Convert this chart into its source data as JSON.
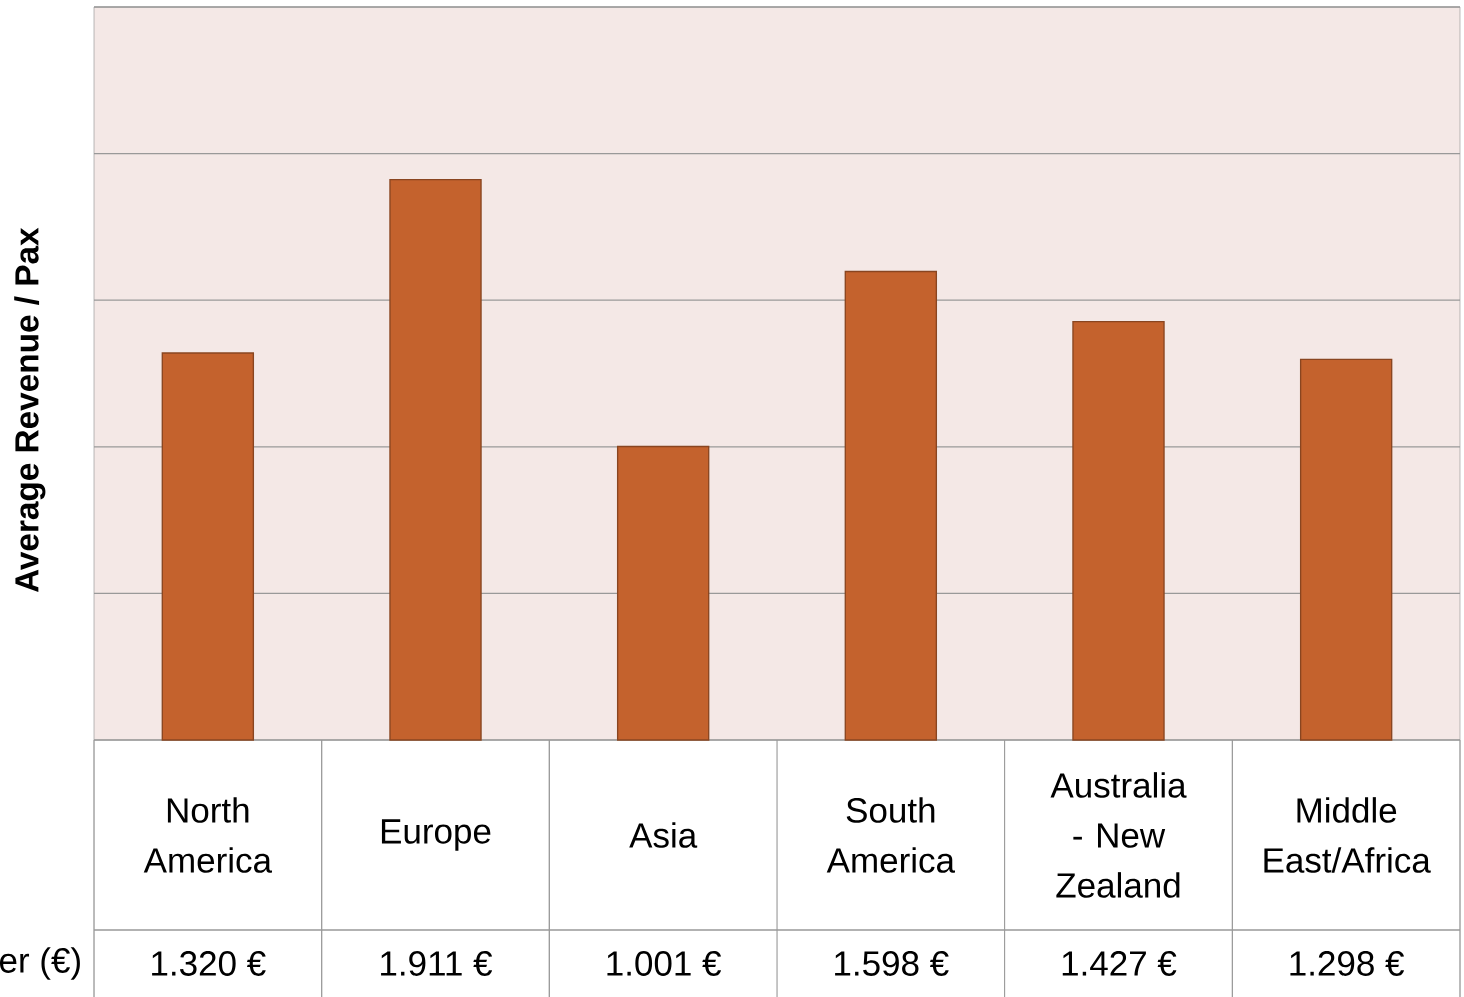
{
  "chart_data": {
    "type": "bar",
    "ylabel": "Average Revenue / Pax",
    "categories": [
      "North America",
      "Europe",
      "Asia",
      "South America",
      "Australia - New Zealand",
      "Middle East/Africa"
    ],
    "values": [
      1320,
      1911,
      1001,
      1598,
      1427,
      1298
    ],
    "value_labels": [
      "1.320 €",
      "1.911 €",
      "1.001 €",
      "1.598 €",
      "1.427 €",
      "1.298 €"
    ],
    "color": "#c4622d",
    "ylim": [
      0,
      2500
    ],
    "yticks": [
      {
        "value": 0,
        "label": null
      },
      {
        "value": 500,
        "label": null
      },
      {
        "value": 1000,
        "label": null
      },
      {
        "value": 1500,
        "label": null
      },
      {
        "value": 2000,
        "label": null
      },
      {
        "value": 2500,
        "label": null
      }
    ],
    "tick_labels": "x",
    "grid": "y",
    "annotations": [
      "er (€)"
    ]
  }
}
